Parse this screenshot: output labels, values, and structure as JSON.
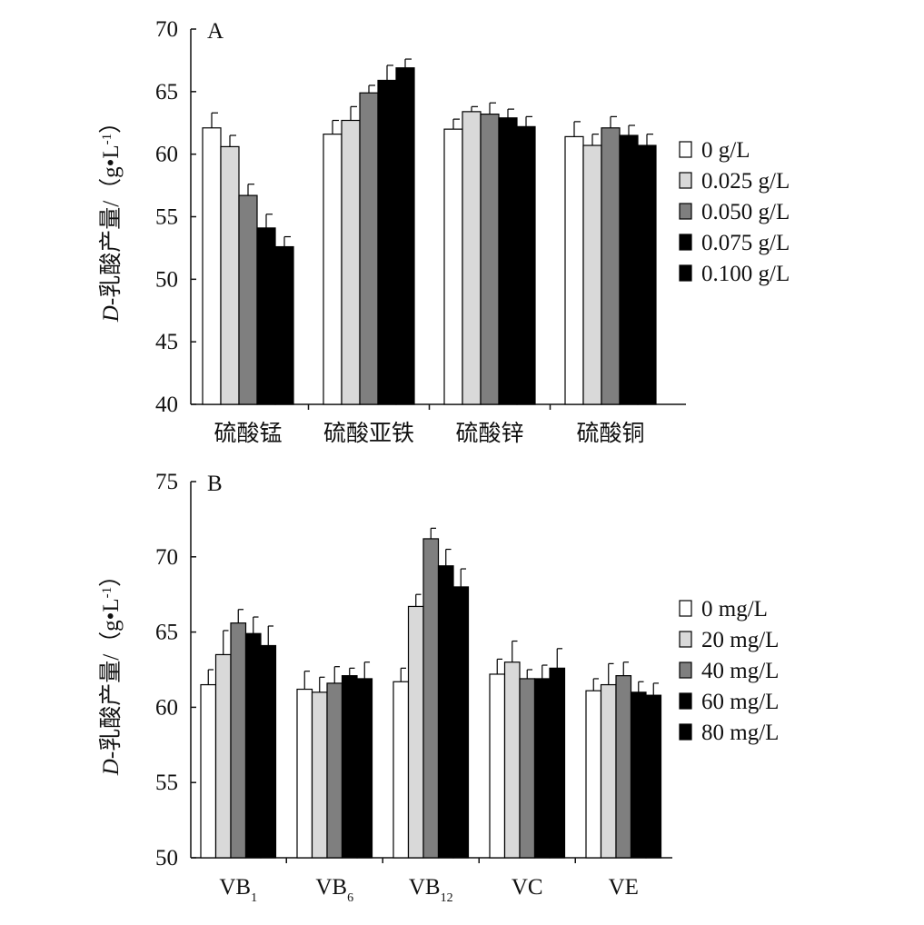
{
  "figure": {
    "colors": {
      "s0": "#ffffff",
      "s1": "#d9d9d9",
      "s2": "#7f7f7f",
      "s3": "#000000",
      "s4": "#000000",
      "axis": "#111111"
    }
  },
  "chart_data": [
    {
      "type": "bar",
      "panel": "A",
      "ylabel_prefix": "D",
      "ylabel_main": "-乳酸产量/（g•L",
      "ylabel_sup": "-1",
      "ylabel_suffix": "）",
      "ylim": [
        40,
        70
      ],
      "yticks": [
        "40",
        "45",
        "50",
        "55",
        "60",
        "65",
        "70"
      ],
      "categories": [
        "硫酸锰",
        "硫酸亚铁",
        "硫酸锌",
        "硫酸铜"
      ],
      "legend_position": "right",
      "series": [
        {
          "name": "0 g/L",
          "values": [
            62.1,
            61.6,
            62.0,
            61.4
          ],
          "errors": [
            1.2,
            1.1,
            0.8,
            1.2
          ]
        },
        {
          "name": "0.025 g/L",
          "values": [
            60.6,
            62.7,
            63.4,
            60.7
          ],
          "errors": [
            0.9,
            1.1,
            0.4,
            0.9
          ]
        },
        {
          "name": "0.050 g/L",
          "values": [
            56.7,
            64.9,
            63.2,
            62.1
          ],
          "errors": [
            0.9,
            0.6,
            0.9,
            0.9
          ]
        },
        {
          "name": "0.075 g/L",
          "values": [
            54.1,
            65.9,
            62.9,
            61.5
          ],
          "errors": [
            1.1,
            1.2,
            0.7,
            0.8
          ]
        },
        {
          "name": "0.100 g/L",
          "values": [
            52.6,
            66.9,
            62.2,
            60.7
          ],
          "errors": [
            0.8,
            0.7,
            0.8,
            0.9
          ]
        }
      ]
    },
    {
      "type": "bar",
      "panel": "B",
      "ylabel_prefix": "D",
      "ylabel_main": "-乳酸产量/（g•L",
      "ylabel_sup": "-1",
      "ylabel_suffix": "）",
      "ylim": [
        50,
        75
      ],
      "yticks": [
        "50",
        "55",
        "60",
        "65",
        "70",
        "75"
      ],
      "categories": [
        {
          "base": "VB",
          "sub": "1"
        },
        {
          "base": "VB",
          "sub": "6"
        },
        {
          "base": "VB",
          "sub": "12"
        },
        {
          "base": "VC",
          "sub": ""
        },
        {
          "base": "VE",
          "sub": ""
        }
      ],
      "legend_position": "right",
      "series": [
        {
          "name": "0 mg/L",
          "values": [
            61.5,
            61.2,
            61.7,
            62.2,
            61.1
          ],
          "errors": [
            1.0,
            1.2,
            0.9,
            1.0,
            0.8
          ]
        },
        {
          "name": "20 mg/L",
          "values": [
            63.5,
            61.0,
            66.7,
            63.0,
            61.5
          ],
          "errors": [
            1.6,
            1.0,
            0.8,
            1.4,
            1.4
          ]
        },
        {
          "name": "40 mg/L",
          "values": [
            65.6,
            61.6,
            71.2,
            61.9,
            62.1
          ],
          "errors": [
            0.9,
            1.1,
            0.7,
            0.6,
            0.9
          ]
        },
        {
          "name": "60 mg/L",
          "values": [
            64.9,
            62.1,
            69.4,
            61.9,
            61.0
          ],
          "errors": [
            1.1,
            0.5,
            1.1,
            0.9,
            0.7
          ]
        },
        {
          "name": "80 mg/L",
          "values": [
            64.1,
            61.9,
            68.0,
            62.6,
            60.8
          ],
          "errors": [
            1.3,
            1.1,
            1.2,
            1.3,
            0.8
          ]
        }
      ]
    }
  ]
}
